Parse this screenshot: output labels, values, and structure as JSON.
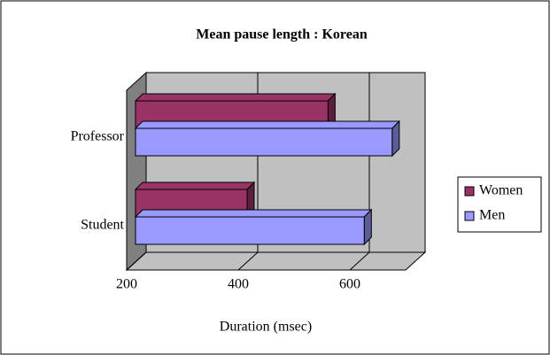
{
  "chart_data": {
    "type": "bar3d",
    "title": "Mean pause length : Korean",
    "xlabel": "Duration (msec)",
    "categories": [
      "Student",
      "Professor"
    ],
    "series": [
      {
        "name": "Women",
        "color": "#993366",
        "values": [
          400,
          545
        ]
      },
      {
        "name": "Men",
        "color": "#9999ff",
        "values": [
          610,
          660
        ]
      }
    ],
    "xlim": [
      200,
      700
    ],
    "xticks": [
      200,
      400,
      600
    ],
    "grid": true,
    "legend": "right"
  }
}
